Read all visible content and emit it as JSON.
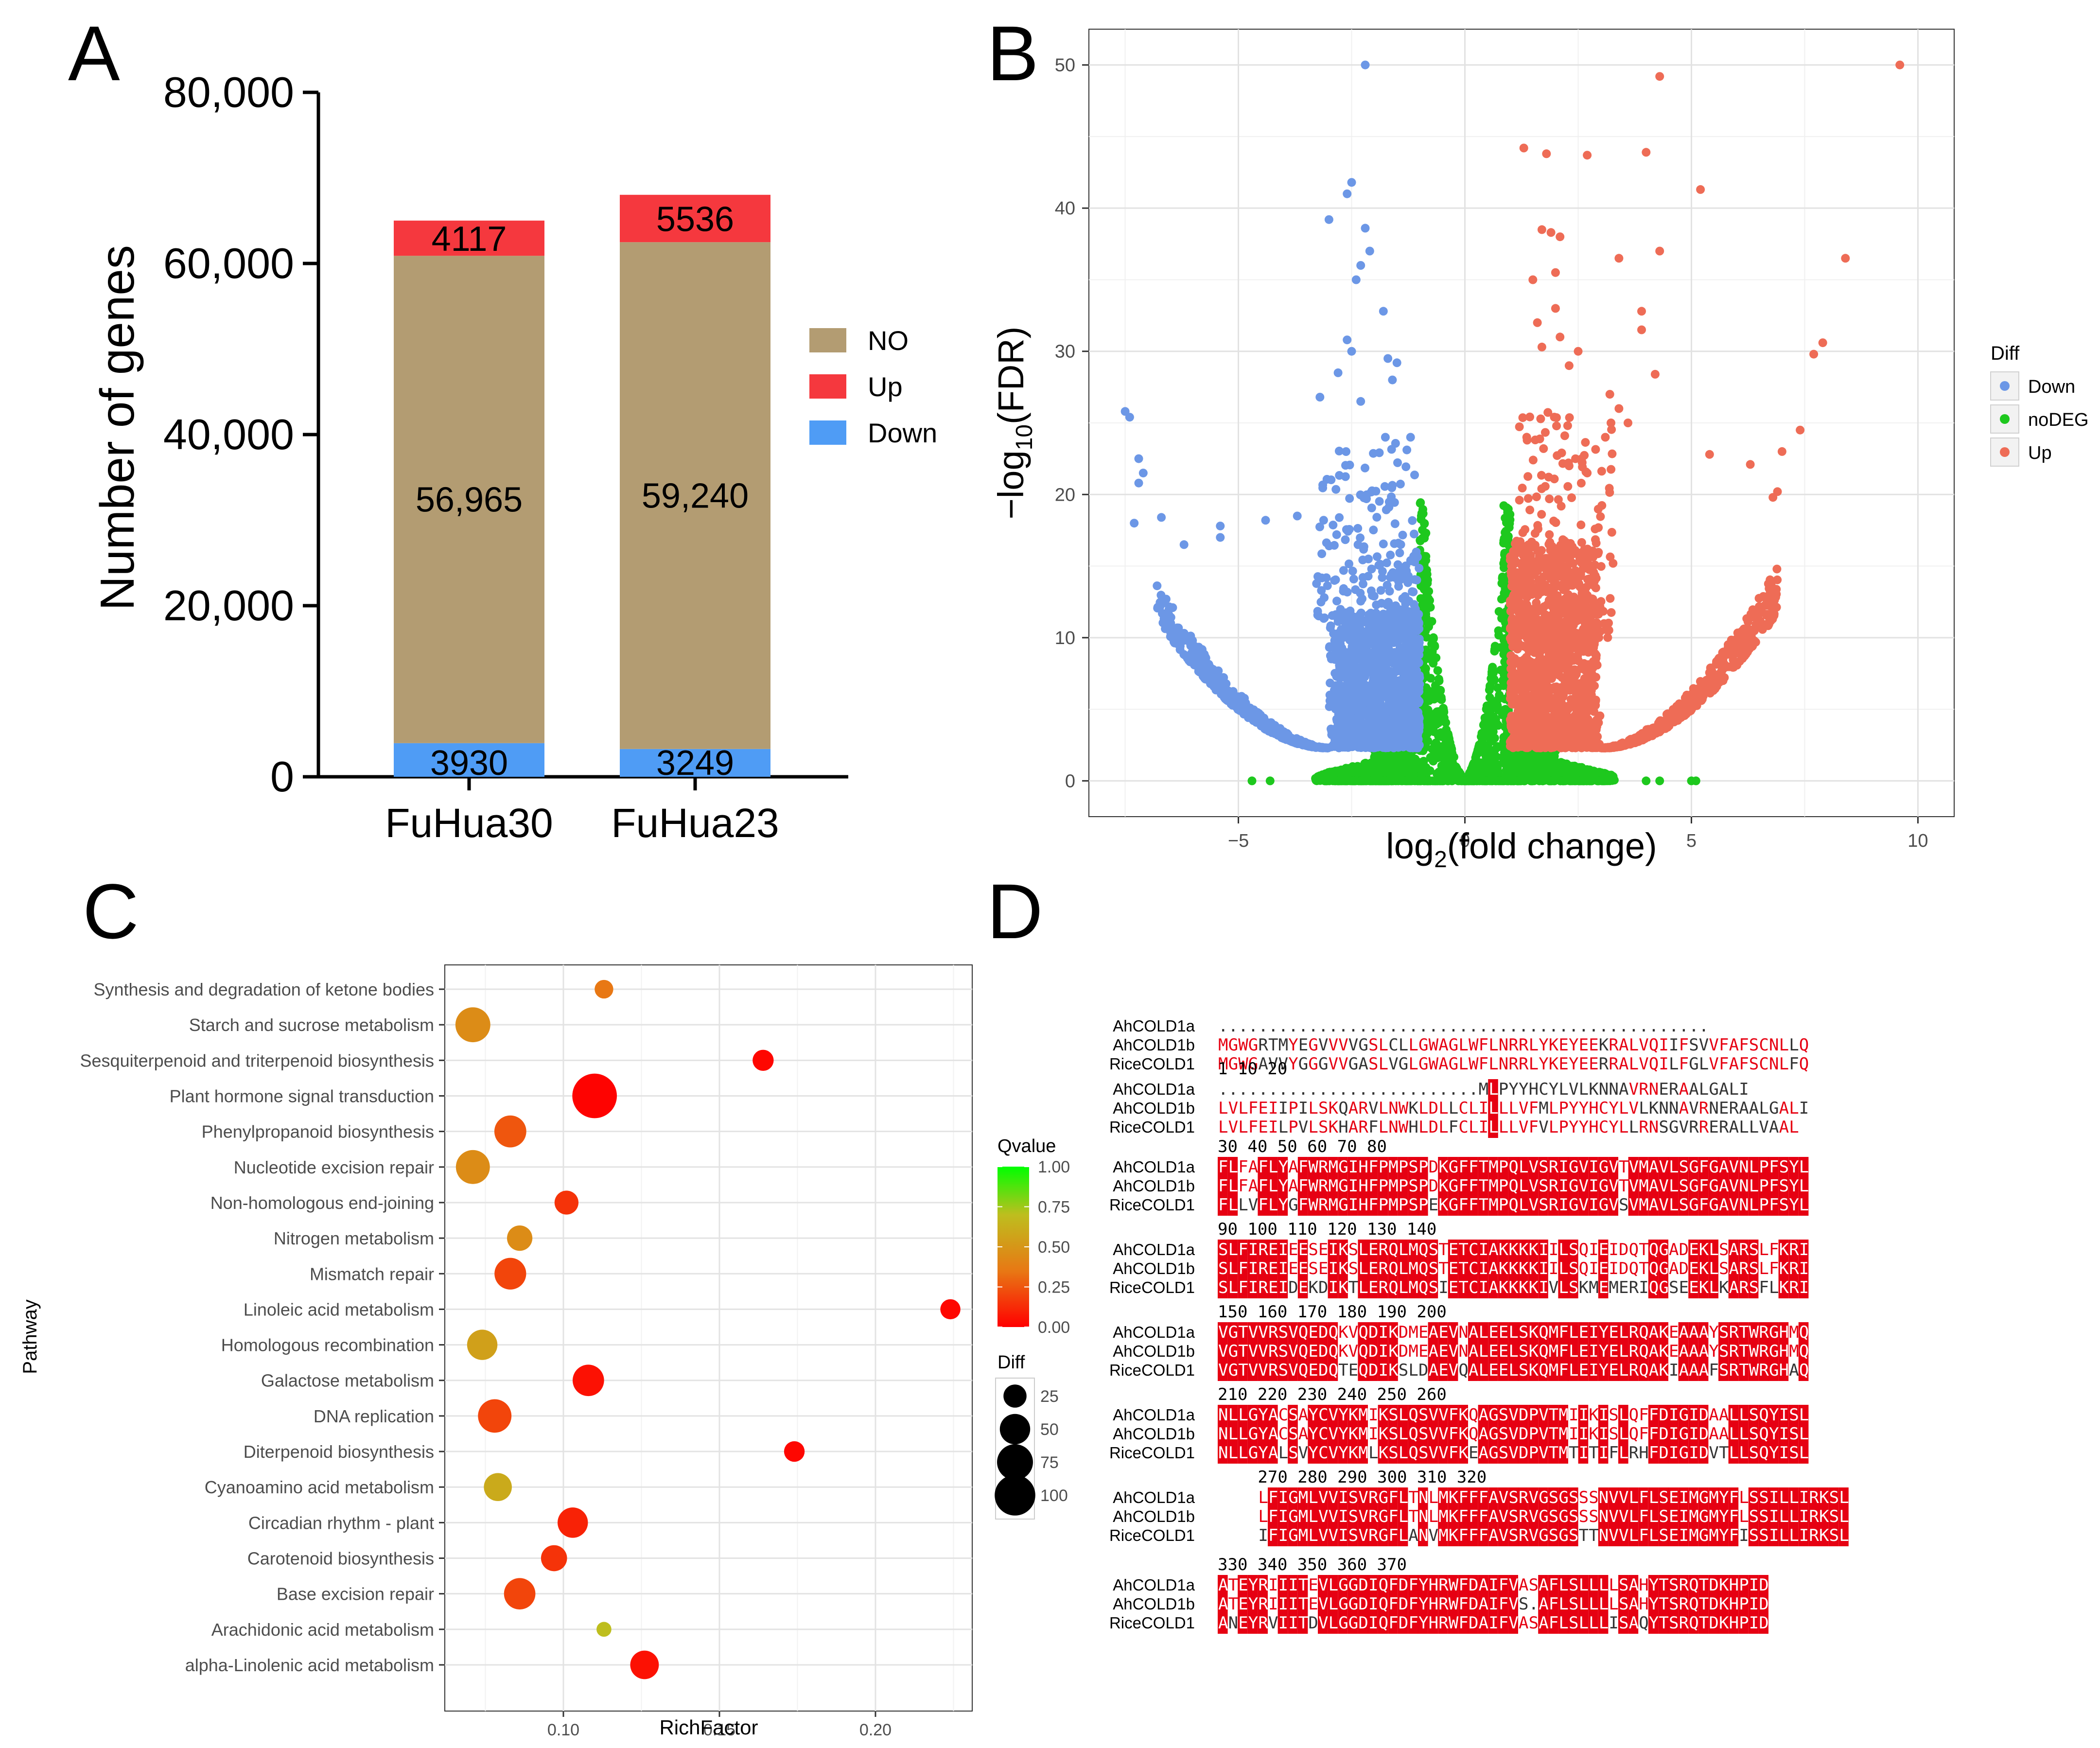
{
  "panels": {
    "A": {
      "letter": "A",
      "chart_data": {
        "type": "bar",
        "stacked": true,
        "categories": [
          "FuHua30",
          "FuHua23"
        ],
        "series": [
          {
            "name": "Down",
            "color": "#4f9cf5",
            "values": [
              3930,
              3249
            ],
            "labels": [
              "3930",
              "3249"
            ]
          },
          {
            "name": "NO",
            "color": "#b39c72",
            "values": [
              56965,
              59240
            ],
            "labels": [
              "56,965",
              "59,240"
            ]
          },
          {
            "name": "Up",
            "color": "#f5383e",
            "values": [
              4117,
              5536
            ],
            "labels": [
              "4117",
              "5536"
            ]
          }
        ],
        "legend": [
          {
            "name": "NO",
            "color": "#b39c72"
          },
          {
            "name": "Up",
            "color": "#f5383e"
          },
          {
            "name": "Down",
            "color": "#4f9cf5"
          }
        ],
        "ylabel": "Number of  genes",
        "xlabel": "",
        "ylim": [
          0,
          80000
        ],
        "yticks": [
          0,
          20000,
          40000,
          60000,
          80000
        ],
        "ytick_labels": [
          "0",
          "20,000",
          "40,000",
          "60,000",
          "80,000"
        ],
        "legend_position": "right"
      }
    },
    "B": {
      "letter": "B",
      "chart_data": {
        "type": "scatter",
        "title": "",
        "xlabel": "log2(fold change)",
        "ylabel": "-log10(FDR)",
        "xlim": [
          -8.3,
          10.8
        ],
        "ylim": [
          -2.5,
          52.5
        ],
        "xticks": [
          -5,
          0,
          5,
          10
        ],
        "xtick_labels": [
          "−5",
          "0",
          "5",
          "10"
        ],
        "yticks": [
          0,
          10,
          20,
          30,
          40,
          50
        ],
        "ytick_labels": [
          "0",
          "10",
          "20",
          "30",
          "40",
          "50"
        ],
        "grid": true,
        "legend_title": "Diff",
        "legend_position": "right",
        "series": [
          {
            "name": "Down",
            "color": "#6c97e6"
          },
          {
            "name": "noDEG",
            "color": "#1ec81e"
          },
          {
            "name": "Up",
            "color": "#ee6c56"
          }
        ],
        "outlier_points": {
          "Down": [
            [
              -2.2,
              50
            ],
            [
              -2.5,
              41.8
            ],
            [
              -2.6,
              41
            ],
            [
              -3,
              39.2
            ],
            [
              -2.2,
              38.6
            ],
            [
              -2.1,
              37
            ],
            [
              -2.3,
              36
            ],
            [
              -2.4,
              35
            ],
            [
              -1.8,
              32.8
            ],
            [
              -2.6,
              30.8
            ],
            [
              -2.5,
              30
            ],
            [
              -1.7,
              29.5
            ],
            [
              -1.5,
              29.2
            ],
            [
              -2.8,
              28.5
            ],
            [
              -1.6,
              28
            ],
            [
              -3.2,
              26.8
            ],
            [
              -2.3,
              26.5
            ],
            [
              -7.5,
              25.8
            ],
            [
              -7.4,
              25.4
            ],
            [
              -1.2,
              24
            ],
            [
              -7.2,
              22.5
            ],
            [
              -7.1,
              21.5
            ],
            [
              -7.2,
              20.8
            ],
            [
              -7.3,
              18
            ],
            [
              -6.7,
              18.4
            ],
            [
              -5.4,
              17.8
            ],
            [
              -4.4,
              18.2
            ],
            [
              -3.7,
              18.5
            ],
            [
              -6.2,
              16.5
            ],
            [
              -5.4,
              17
            ]
          ],
          "Up": [
            [
              9.6,
              50
            ],
            [
              4.3,
              49.2
            ],
            [
              5.2,
              41.3
            ],
            [
              8.4,
              36.5
            ],
            [
              1.3,
              44.2
            ],
            [
              1.8,
              43.8
            ],
            [
              2.7,
              43.7
            ],
            [
              4.0,
              43.9
            ],
            [
              4.3,
              37
            ],
            [
              3.4,
              36.5
            ],
            [
              1.7,
              38.5
            ],
            [
              1.9,
              38.3
            ],
            [
              2.1,
              38
            ],
            [
              2.0,
              35.5
            ],
            [
              1.5,
              35
            ],
            [
              2.0,
              33
            ],
            [
              1.6,
              32
            ],
            [
              2.1,
              31
            ],
            [
              3.9,
              32.8
            ],
            [
              3.9,
              31.5
            ],
            [
              7.9,
              30.6
            ],
            [
              7.7,
              29.8
            ],
            [
              2.5,
              30
            ],
            [
              1.7,
              30.3
            ],
            [
              4.2,
              28.4
            ],
            [
              3.2,
              27
            ],
            [
              3.4,
              26
            ],
            [
              2.3,
              29
            ],
            [
              5.4,
              22.8
            ],
            [
              6.3,
              22.1
            ],
            [
              7.4,
              24.5
            ],
            [
              7.0,
              23
            ],
            [
              3.6,
              25
            ],
            [
              3.1,
              24
            ],
            [
              6.8,
              19.8
            ],
            [
              6.9,
              20.2
            ],
            [
              2.3,
              22
            ],
            [
              2.7,
              21.5
            ]
          ]
        }
      }
    },
    "C": {
      "letter": "C",
      "chart_data": {
        "type": "scatter",
        "subtype": "bubble",
        "xlabel": "RichFactor",
        "ylabel": "Pathway",
        "xlim": [
          0.062,
          0.231
        ],
        "xticks": [
          0.1,
          0.15,
          0.2
        ],
        "xtick_labels": [
          "0.10",
          "0.15",
          "0.20"
        ],
        "grid": true,
        "pathways": [
          "Synthesis and degradation of ketone bodies",
          "Starch and sucrose metabolism",
          "Sesquiterpenoid and triterpenoid biosynthesis",
          "Plant hormone signal transduction",
          "Phenylpropanoid biosynthesis",
          "Nucleotide excision repair",
          "Non-homologous end-joining",
          "Nitrogen metabolism",
          "Mismatch repair",
          "Linoleic acid metabolism",
          "Homologous recombination",
          "Galactose metabolism",
          "DNA replication",
          "Diterpenoid biosynthesis",
          "Cyanoamino acid metabolism",
          "Circadian rhythm - plant",
          "Carotenoid biosynthesis",
          "Base excision repair",
          "Arachidonic acid metabolism",
          "alpha-Linolenic acid metabolism"
        ],
        "richfactor": [
          0.113,
          0.071,
          0.164,
          0.11,
          0.083,
          0.071,
          0.101,
          0.086,
          0.083,
          0.224,
          0.074,
          0.108,
          0.078,
          0.174,
          0.079,
          0.103,
          0.097,
          0.086,
          0.113,
          0.126
        ],
        "diff": [
          12,
          62,
          17,
          110,
          50,
          58,
          24,
          28,
          49,
          15,
          44,
          48,
          56,
          16,
          36,
          44,
          30,
          48,
          6,
          38
        ],
        "qvalue": [
          0.35,
          0.45,
          0.02,
          0.01,
          0.25,
          0.45,
          0.15,
          0.45,
          0.2,
          0.02,
          0.55,
          0.05,
          0.2,
          0.02,
          0.6,
          0.1,
          0.15,
          0.2,
          0.7,
          0.05
        ],
        "colorbar": {
          "title": "Qvalue",
          "range": [
            0,
            1
          ],
          "ticks": [
            "0.00",
            "0.25",
            "0.50",
            "0.75",
            "1.00"
          ],
          "low_color": "#ff0000",
          "high_color": "#00ff00"
        },
        "size_legend": {
          "title": "Diff",
          "ticks": [
            "25",
            "50",
            "75",
            "100"
          ]
        }
      }
    },
    "D": {
      "letter": "D",
      "names": [
        "AhCOLD1a",
        "AhCOLD1b",
        "RiceCOLD1"
      ],
      "blocks": [
        {
          "numbers": "",
          "rows": [
            ".................................................",
            "MGWGRTMYEGVVVVGSLCLLGWAGLWFLNRRLYKEYEEKRALVQIIFSVVFAFSCNLLQ",
            "MGWGAVVYGGGVVGASLVGLGWAGLWFLNRRLYKEYEERRALVQILFGLVFAFSCNLFQ"
          ],
          "offset": 0
        },
        {
          "numbers": "                                1           10          20",
          "rows": [
            "..........................MLPYYHCYLVLKNNAVRNERAALGALI",
            "LVLFEIIPILSKQARVLNWKLDLLCLILLLVFMLPYYHCYLVLKNNAVRNERAALGALI",
            "LVLFEILPVLSKHARFLNWHLDLFCLILLLVFVLPYYHCYLLRNSGVRRERALLVAAL"
          ],
          "offset": 0
        },
        {
          "numbers": " 30        40        50        60        70        80",
          "rows": [
            "FLFAFLYAFWRMGIHFPMPSPDKGFFTMPQLVSRIGVIGVTVMAVLSGFGAVNLPFSYL",
            "FLFAFLYAFWRMGIHFPMPSPDKGFFTMPQLVSRIGVIGVTVMAVLSGFGAVNLPFSYL",
            "FLLVFLYGFWRMGIHFPMPSPEKGFFTMPQLVSRIGVIGVSVMAVLSGFGAVNLPFSYL"
          ],
          "offset": 0
        },
        {
          "numbers": "  90        100       110       120       130       140",
          "rows": [
            "SLFIREIEESEIKSLERQLMQSTETCIAKKKKIILSQIEIDQTQGADEKLSARSLFKRI",
            "SLFIREIEESEIKSLERQLMQSTETCIAKKKKIILSQIEIDQTQGADEKLSARSLFKRI",
            "SLFIREIDEKDIKTLERQLMQSIETCIAKKKKIVLSKMEMERIQGSEEKLKARSFLKRI"
          ],
          "offset": 0
        },
        {
          "numbers": "  150        160       170       180       190       200",
          "rows": [
            "VGTVVRSVQEDQKVQDIKDMEAEVNALEELSKQMFLEIYELRQAKEAAAYSRTWRGHMQ",
            "VGTVVRSVQEDQKVQDIKDMEAEVNALEELSKQMFLEIYELRQAKEAAAYSRTWRGHMQ",
            "VGTVVRSVQEDQTEQDIKSLDAEVQALEELSKQMFLEIYELRQAKIAAAFSRTWRGHAQ"
          ],
          "offset": 0
        },
        {
          "numbers": "   210       220       230       240       250       260",
          "rows": [
            "NLLGYACSAYCVYKMIKSLQSVVFKQAGSVDPVTMIIKISLQFFDIGIDAALLSQYISL",
            "NLLGYACSAYCVYKMIKSLQSVVFKQAGSVDPVTMIIKISLQFFDIGIDAALLSQYISL",
            "NLLGYALSVYCVYKMLKSLQSVVFKEAGSVDPVTMTITIFLRHFDIGIDVTLLSQYISL"
          ],
          "offset": 0
        },
        {
          "numbers": "      270       280       290       300       310       320",
          "rows": [
            "LFIGMLVVISVRGFLTNLMKFFFAVSRVGSGSSSNVVLFLSEIMGMYFLSSILLIRKSL",
            "LFIGMLVVISVRGFLTNLMKFFFAVSRVGSGSSSNVVLFLSEIMGMYFLSSILLIRKSL",
            "IFIGMLVVISVRGFLANVMKFFFAVSRVGSGSTTNVVLFLSEIMGMYFISSILLIRKSL"
          ],
          "offset": 4
        },
        {
          "numbers": "      330       340       350       360       370",
          "rows": [
            "ATEYRIIITEVLGGDIQFDFYHRWFDAIFVASAFLSLLLLSAHYTSRQTDKHPID",
            "ATEYRIIITEVLGGDIQFDFYHRWFDAIFVS.AFLSLLLLSAHYTSRQTDKHPID",
            "ANEYRVIITDVLGGDIQFDFYHRWFDAIFVASAFLSLLLISAQYTSRQTDKHPID"
          ],
          "offset": 0
        }
      ]
    }
  }
}
